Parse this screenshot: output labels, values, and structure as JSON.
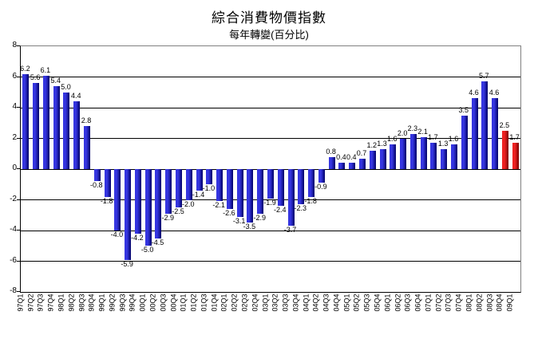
{
  "chart_data": {
    "type": "bar",
    "title": "綜合消費物價指數",
    "subtitle": "每年轉變(百分比)",
    "xlabel": "",
    "ylabel": "",
    "ylim": [
      -8,
      8
    ],
    "ytick_step": 2,
    "yticks": [
      8,
      6,
      4,
      2,
      0,
      -2,
      -4,
      -6,
      -8
    ],
    "grid": "on",
    "legend": "none",
    "data_labels": "on",
    "categories": [
      "97Q1",
      "97Q2",
      "97Q3",
      "97Q4",
      "98Q1",
      "98Q2",
      "98Q3",
      "98Q4",
      "99Q1",
      "99Q2",
      "99Q3",
      "99Q4",
      "00Q1",
      "00Q2",
      "00Q3",
      "00Q4",
      "01Q1",
      "01Q2",
      "01Q3",
      "01Q4",
      "02Q1",
      "02Q2",
      "02Q3",
      "02Q4",
      "03Q1",
      "03Q2",
      "03Q3",
      "03Q4",
      "04Q1",
      "04Q2",
      "04Q3",
      "04Q4",
      "05Q1",
      "05Q2",
      "05Q3",
      "05Q4",
      "06Q1",
      "06Q2",
      "06Q3",
      "06Q4",
      "07Q1",
      "07Q2",
      "07Q3",
      "07Q4",
      "08Q1",
      "08Q2",
      "08Q3",
      "08Q4",
      "09Q1"
    ],
    "values": [
      6.2,
      5.6,
      6.1,
      5.4,
      5.0,
      4.4,
      2.8,
      -0.8,
      -1.8,
      -4.0,
      -5.9,
      -4.2,
      -5.0,
      -4.5,
      -2.9,
      -2.5,
      -2.0,
      -1.4,
      -1.0,
      -2.1,
      -2.6,
      -3.1,
      -3.5,
      -2.9,
      -1.9,
      -2.4,
      -3.7,
      -2.3,
      -1.8,
      -0.9,
      0.8,
      0.4,
      0.4,
      0.7,
      1.2,
      1.3,
      1.6,
      2.0,
      2.3,
      2.1,
      1.7,
      1.3,
      1.6,
      3.5,
      4.6,
      5.7,
      4.6,
      2.5,
      1.7
    ],
    "highlight_indices": [
      47,
      48
    ],
    "colors": {
      "bar_blue_light": "#3535e0",
      "bar_blue_dark": "#000066",
      "bar_red_light": "#ee2222",
      "bar_red_dark": "#7a0000",
      "gridline": "#000000",
      "plot_border": "#808080",
      "text": "#000000"
    }
  }
}
